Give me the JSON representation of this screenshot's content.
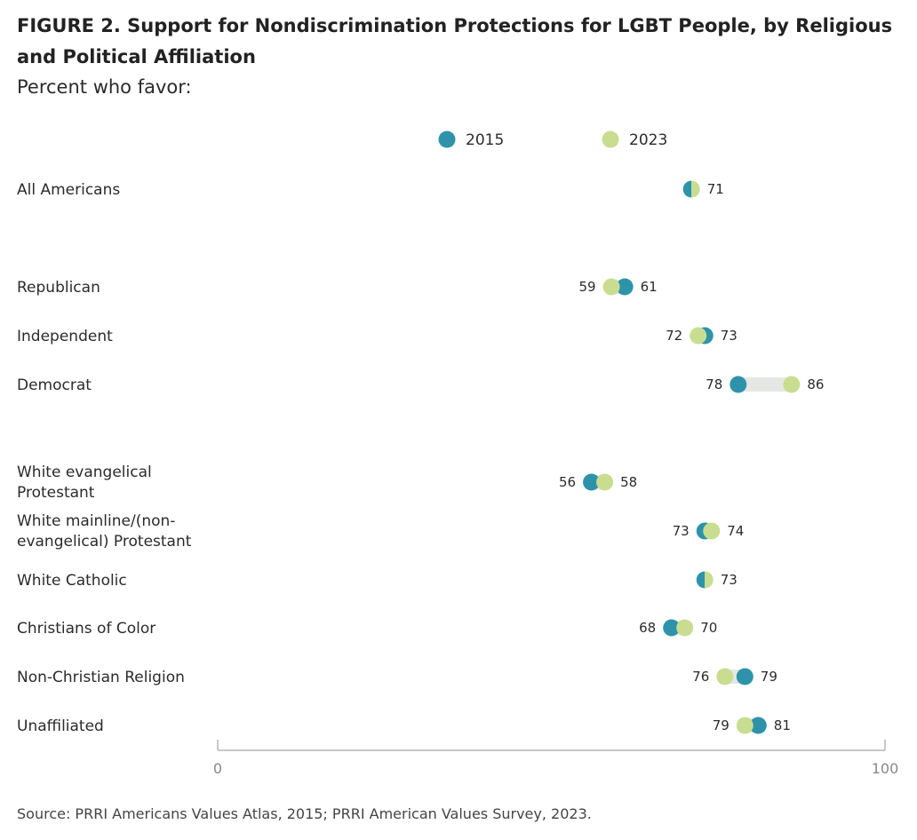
{
  "figure": {
    "title": "FIGURE 2.  Support for Nondiscrimination Protections for LGBT People, by Religious and Political Affiliation",
    "subtitle": "Percent who favor:",
    "source": "Source: PRRI Americans Values Atlas, 2015; PRRI American Values Survey, 2023."
  },
  "colors": {
    "2015": "#2e93aa",
    "2023": "#c9dd91",
    "connector": "#e5e7e5",
    "axis": "#c8c8c8"
  },
  "chart_data": {
    "type": "dumbbell",
    "title": "FIGURE 2.  Support for Nondiscrimination Protections for LGBT People, by Religious and Political Affiliation",
    "subtitle": "Percent who favor:",
    "xlim": [
      0,
      100
    ],
    "x_ticks": [
      "0",
      "100"
    ],
    "legend": [
      "2015",
      "2023"
    ],
    "legend_position": "top",
    "categories": [
      "All Americans",
      "Republican",
      "Independent",
      "Democrat",
      "White evangelical Protestant",
      "White mainline/(non-evangelical) Protestant",
      "White Catholic",
      "Christians of Color",
      "Non-Christian Religion",
      "Unaffiliated"
    ],
    "series": [
      {
        "name": "2015",
        "values": [
          71,
          61,
          73,
          78,
          56,
          73,
          73,
          68,
          79,
          81
        ]
      },
      {
        "name": "2023",
        "values": [
          71,
          59,
          72,
          86,
          58,
          74,
          73,
          70,
          76,
          79
        ]
      }
    ]
  }
}
